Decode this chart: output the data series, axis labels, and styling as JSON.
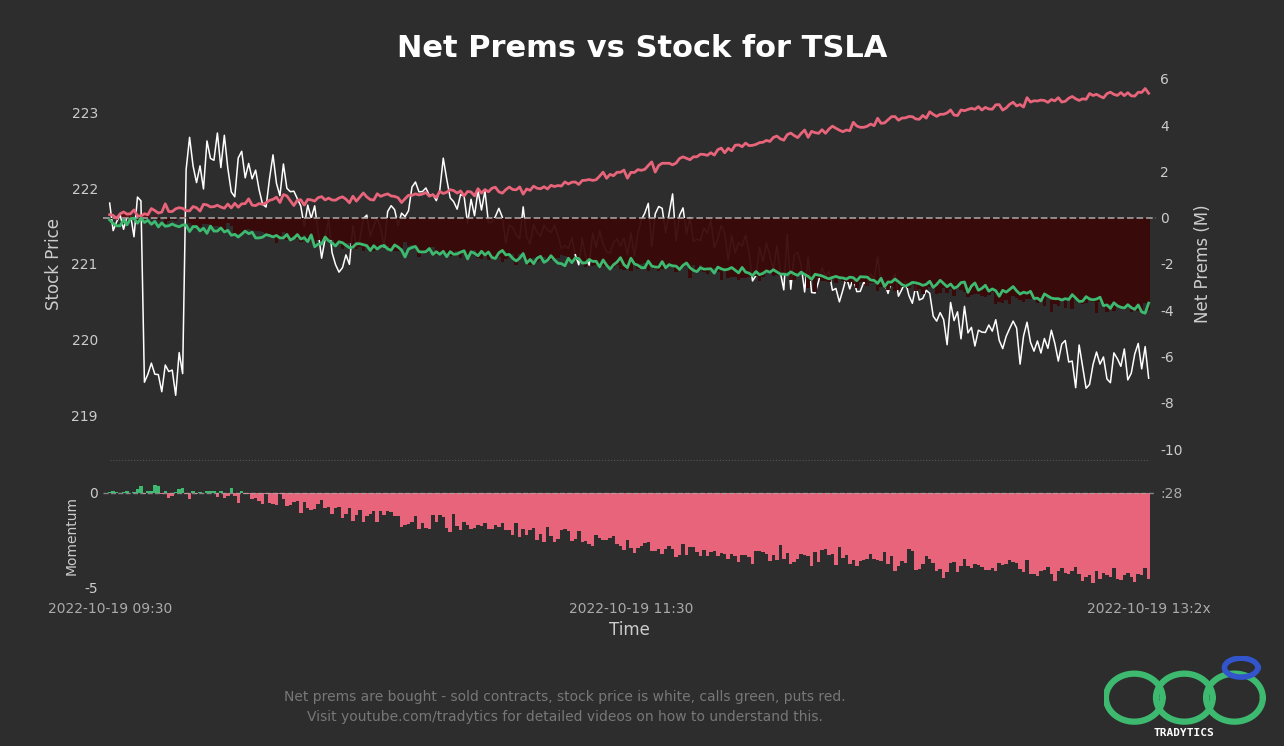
{
  "title": "Net Prems vs Stock for TSLA",
  "background_color": "#2d2d2d",
  "title_color": "#ffffff",
  "title_fontsize": 22,
  "main_ylim": [
    218.4,
    223.6
  ],
  "main_yticks": [
    219,
    220,
    221,
    222,
    223
  ],
  "main_ylabel": "Stock Price",
  "right_ylim": [
    -10.5,
    6.5
  ],
  "right_yticks": [
    -10,
    -8,
    -6,
    -4,
    -2,
    0,
    2,
    4,
    6
  ],
  "right_ylabel": "Net Prems (M)",
  "mom_ylim": [
    -5.5,
    1.0
  ],
  "mom_yticks": [
    -5,
    0
  ],
  "mom_ylabel": "Momentum",
  "xlabel": "Time",
  "tick_color": "#aaaaaa",
  "tick_fontsize": 10,
  "label_color": "#cccccc",
  "stock_color": "#ffffff",
  "calls_color": "#3dba6f",
  "puts_color": "#e8647a",
  "net_prem_bar_color_pos": "#5c1010",
  "net_prem_bar_color_neg": "#3a0808",
  "dashed_line_color": "#aaaaaa",
  "momentum_bar_color": "#e8647a",
  "momentum_pos_color": "#3dba6f",
  "footnote_line1": "Net prems are bought - sold contracts, stock price is white, calls green, puts red.",
  "footnote_line2": "Visit youtube.com/tradytics for detailed videos on how to understand this.",
  "footnote_color": "#777777",
  "footnote_fontsize": 10,
  "n_points": 300,
  "xtick_labels": [
    "2022-10-19 09:30",
    "2022-10-19 11:30",
    "2022-10-19 13:2x"
  ]
}
